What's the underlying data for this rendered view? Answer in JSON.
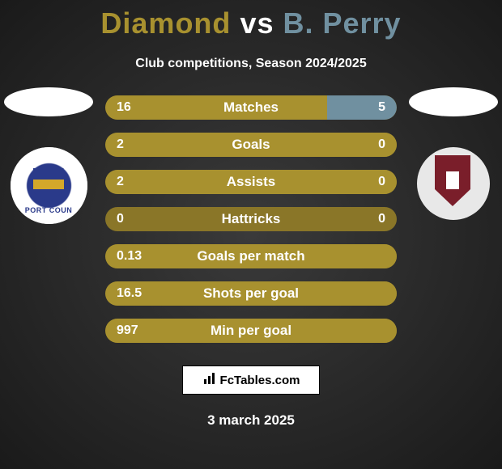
{
  "header": {
    "player1": "Diamond",
    "vs": "vs",
    "player2": "B. Perry",
    "subtitle": "Club competitions, Season 2024/2025"
  },
  "colors": {
    "player1": "#a8912f",
    "player2": "#7090a0",
    "bar_base": "#8a7628",
    "text": "#ffffff",
    "background_inner": "#3a3a3a",
    "background_outer": "#1a1a1a"
  },
  "clubs": {
    "left_label": "PORT COUN",
    "left_primary": "#2a3a8a",
    "left_accent": "#d4a82a",
    "right_primary": "#7a1e2a"
  },
  "stats": [
    {
      "label": "Matches",
      "p1": "16",
      "p2": "5",
      "p1_pct": 76,
      "p2_pct": 24
    },
    {
      "label": "Goals",
      "p1": "2",
      "p2": "0",
      "p1_pct": 100,
      "p2_pct": 0
    },
    {
      "label": "Assists",
      "p1": "2",
      "p2": "0",
      "p1_pct": 100,
      "p2_pct": 0
    },
    {
      "label": "Hattricks",
      "p1": "0",
      "p2": "0",
      "p1_pct": 0,
      "p2_pct": 0
    },
    {
      "label": "Goals per match",
      "p1": "0.13",
      "p2": "",
      "p1_pct": 100,
      "p2_pct": 0
    },
    {
      "label": "Shots per goal",
      "p1": "16.5",
      "p2": "",
      "p1_pct": 100,
      "p2_pct": 0
    },
    {
      "label": "Min per goal",
      "p1": "997",
      "p2": "",
      "p1_pct": 100,
      "p2_pct": 0
    }
  ],
  "footer": {
    "brand": "FcTables.com",
    "date": "3 march 2025"
  }
}
